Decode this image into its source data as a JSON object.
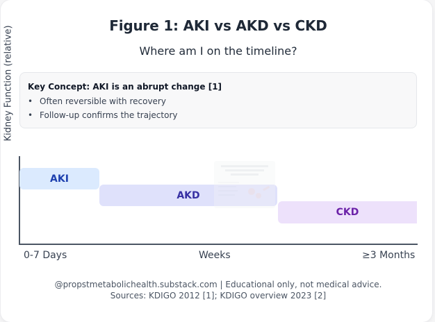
{
  "figure": {
    "title": "Figure 1: AKI vs AKD vs CKD",
    "subtitle": "Where am I on the timeline?",
    "y_axis_label": "Kidney Function (relative)"
  },
  "key_concept": {
    "title": "Key Concept: AKI is an abrupt change [1]",
    "bullets": [
      "Often reversible with recovery",
      "Follow-up confirms the trajectory"
    ]
  },
  "stages": [
    {
      "label": "AKI",
      "fill": "#dbeafe",
      "text_color": "#1e40af"
    },
    {
      "label": "AKD",
      "fill": "#dfe1fb",
      "text_color": "#3730a3"
    },
    {
      "label": "CKD",
      "fill": "#ede1fb",
      "text_color": "#6b21a8"
    }
  ],
  "timeline_ticks": [
    "0-7 Days",
    "Weeks",
    "≥3 Months"
  ],
  "footer": {
    "credit": "@propstmetabolichealth.substack.com | Educational only, not medical advice.",
    "sources": "Sources: KDIGO 2012 [1]; KDIGO overview 2023 [2]"
  },
  "colors": {
    "axis": "#4b5563",
    "card_background": "#ffffff"
  }
}
